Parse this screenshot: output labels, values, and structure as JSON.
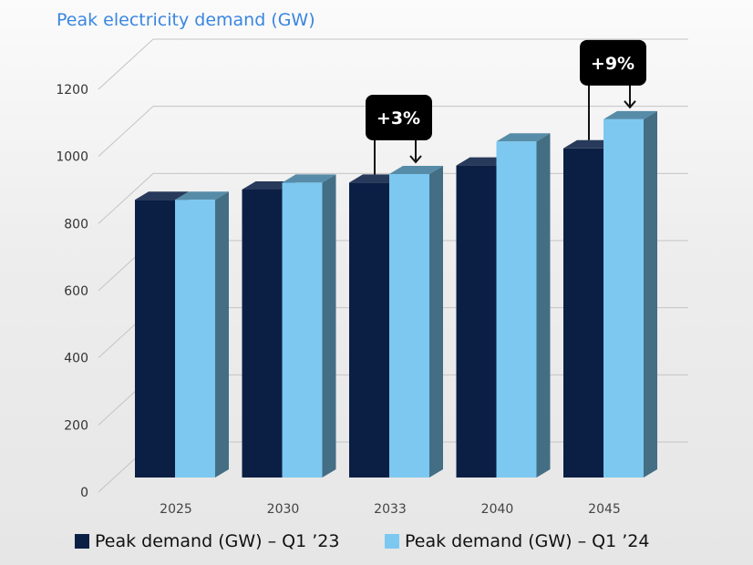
{
  "colors": {
    "title": "#3a86e0",
    "series_q1_23": "#0b1f45",
    "series_q1_24": "#7cc8f0",
    "callout_bg": "#000000",
    "gridline": "#c4c4c4"
  },
  "chart_data": {
    "type": "bar",
    "title": "Peak electricity demand (GW)",
    "xlabel": "",
    "ylabel": "",
    "ylim": [
      0,
      1200
    ],
    "yticks": [
      0,
      200,
      400,
      600,
      800,
      1000,
      1200
    ],
    "grid": true,
    "legend_position": "bottom",
    "categories": [
      "2025",
      "2030",
      "2033",
      "2040",
      "2045"
    ],
    "series": [
      {
        "name": "Peak demand (GW) – Q1 ’23",
        "color_key": "series_q1_23",
        "values": [
          810,
          840,
          860,
          910,
          960
        ]
      },
      {
        "name": "Peak demand (GW) – Q1 ’24",
        "color_key": "series_q1_24",
        "values": [
          810,
          860,
          885,
          980,
          1045
        ]
      }
    ],
    "annotations": [
      {
        "text": "+3%",
        "category": "2033"
      },
      {
        "text": "+9%",
        "category": "2045"
      }
    ]
  }
}
